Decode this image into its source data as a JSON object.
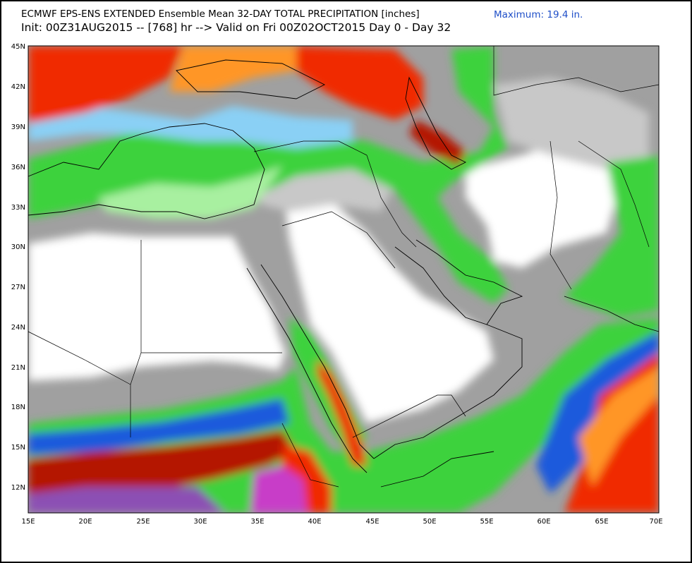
{
  "header": {
    "title_line1": "ECMWF EPS-ENS EXTENDED Ensemble Mean 32-DAY TOTAL PRECIPITATION [inches]",
    "title_line2": "Init: 00Z31AUG2015 -- [768] hr --> Valid on Fri 00Z02OCT2015  Day 0 - Day 32",
    "maximum": "Maximum:  19.4 in."
  },
  "axes": {
    "lat_labels": [
      "45N",
      "42N",
      "39N",
      "36N",
      "33N",
      "30N",
      "27N",
      "24N",
      "21N",
      "18N",
      "15N",
      "12N"
    ],
    "lon_labels": [
      "15E",
      "20E",
      "25E",
      "30E",
      "35E",
      "40E",
      "45E",
      "50E",
      "55E",
      "60E",
      "65E",
      "70E"
    ]
  },
  "colors": {
    "dry": "#ffffff",
    "light_gray": "#c8c8c8",
    "mid_gray": "#a0a0a0",
    "dark_gray": "#808080",
    "pale_green": "#a8f0a0",
    "green": "#3cd23c",
    "dark_green": "#109c10",
    "light_blue": "#8ad0f5",
    "blue": "#1e5adc",
    "yellow": "#fff0a0",
    "orange": "#ff9628",
    "red": "#f02c00",
    "dark_red": "#b41400",
    "maroon": "#6e2010",
    "pink": "#e6b4c8",
    "purple": "#8c50b4",
    "magenta": "#c83cc8"
  }
}
